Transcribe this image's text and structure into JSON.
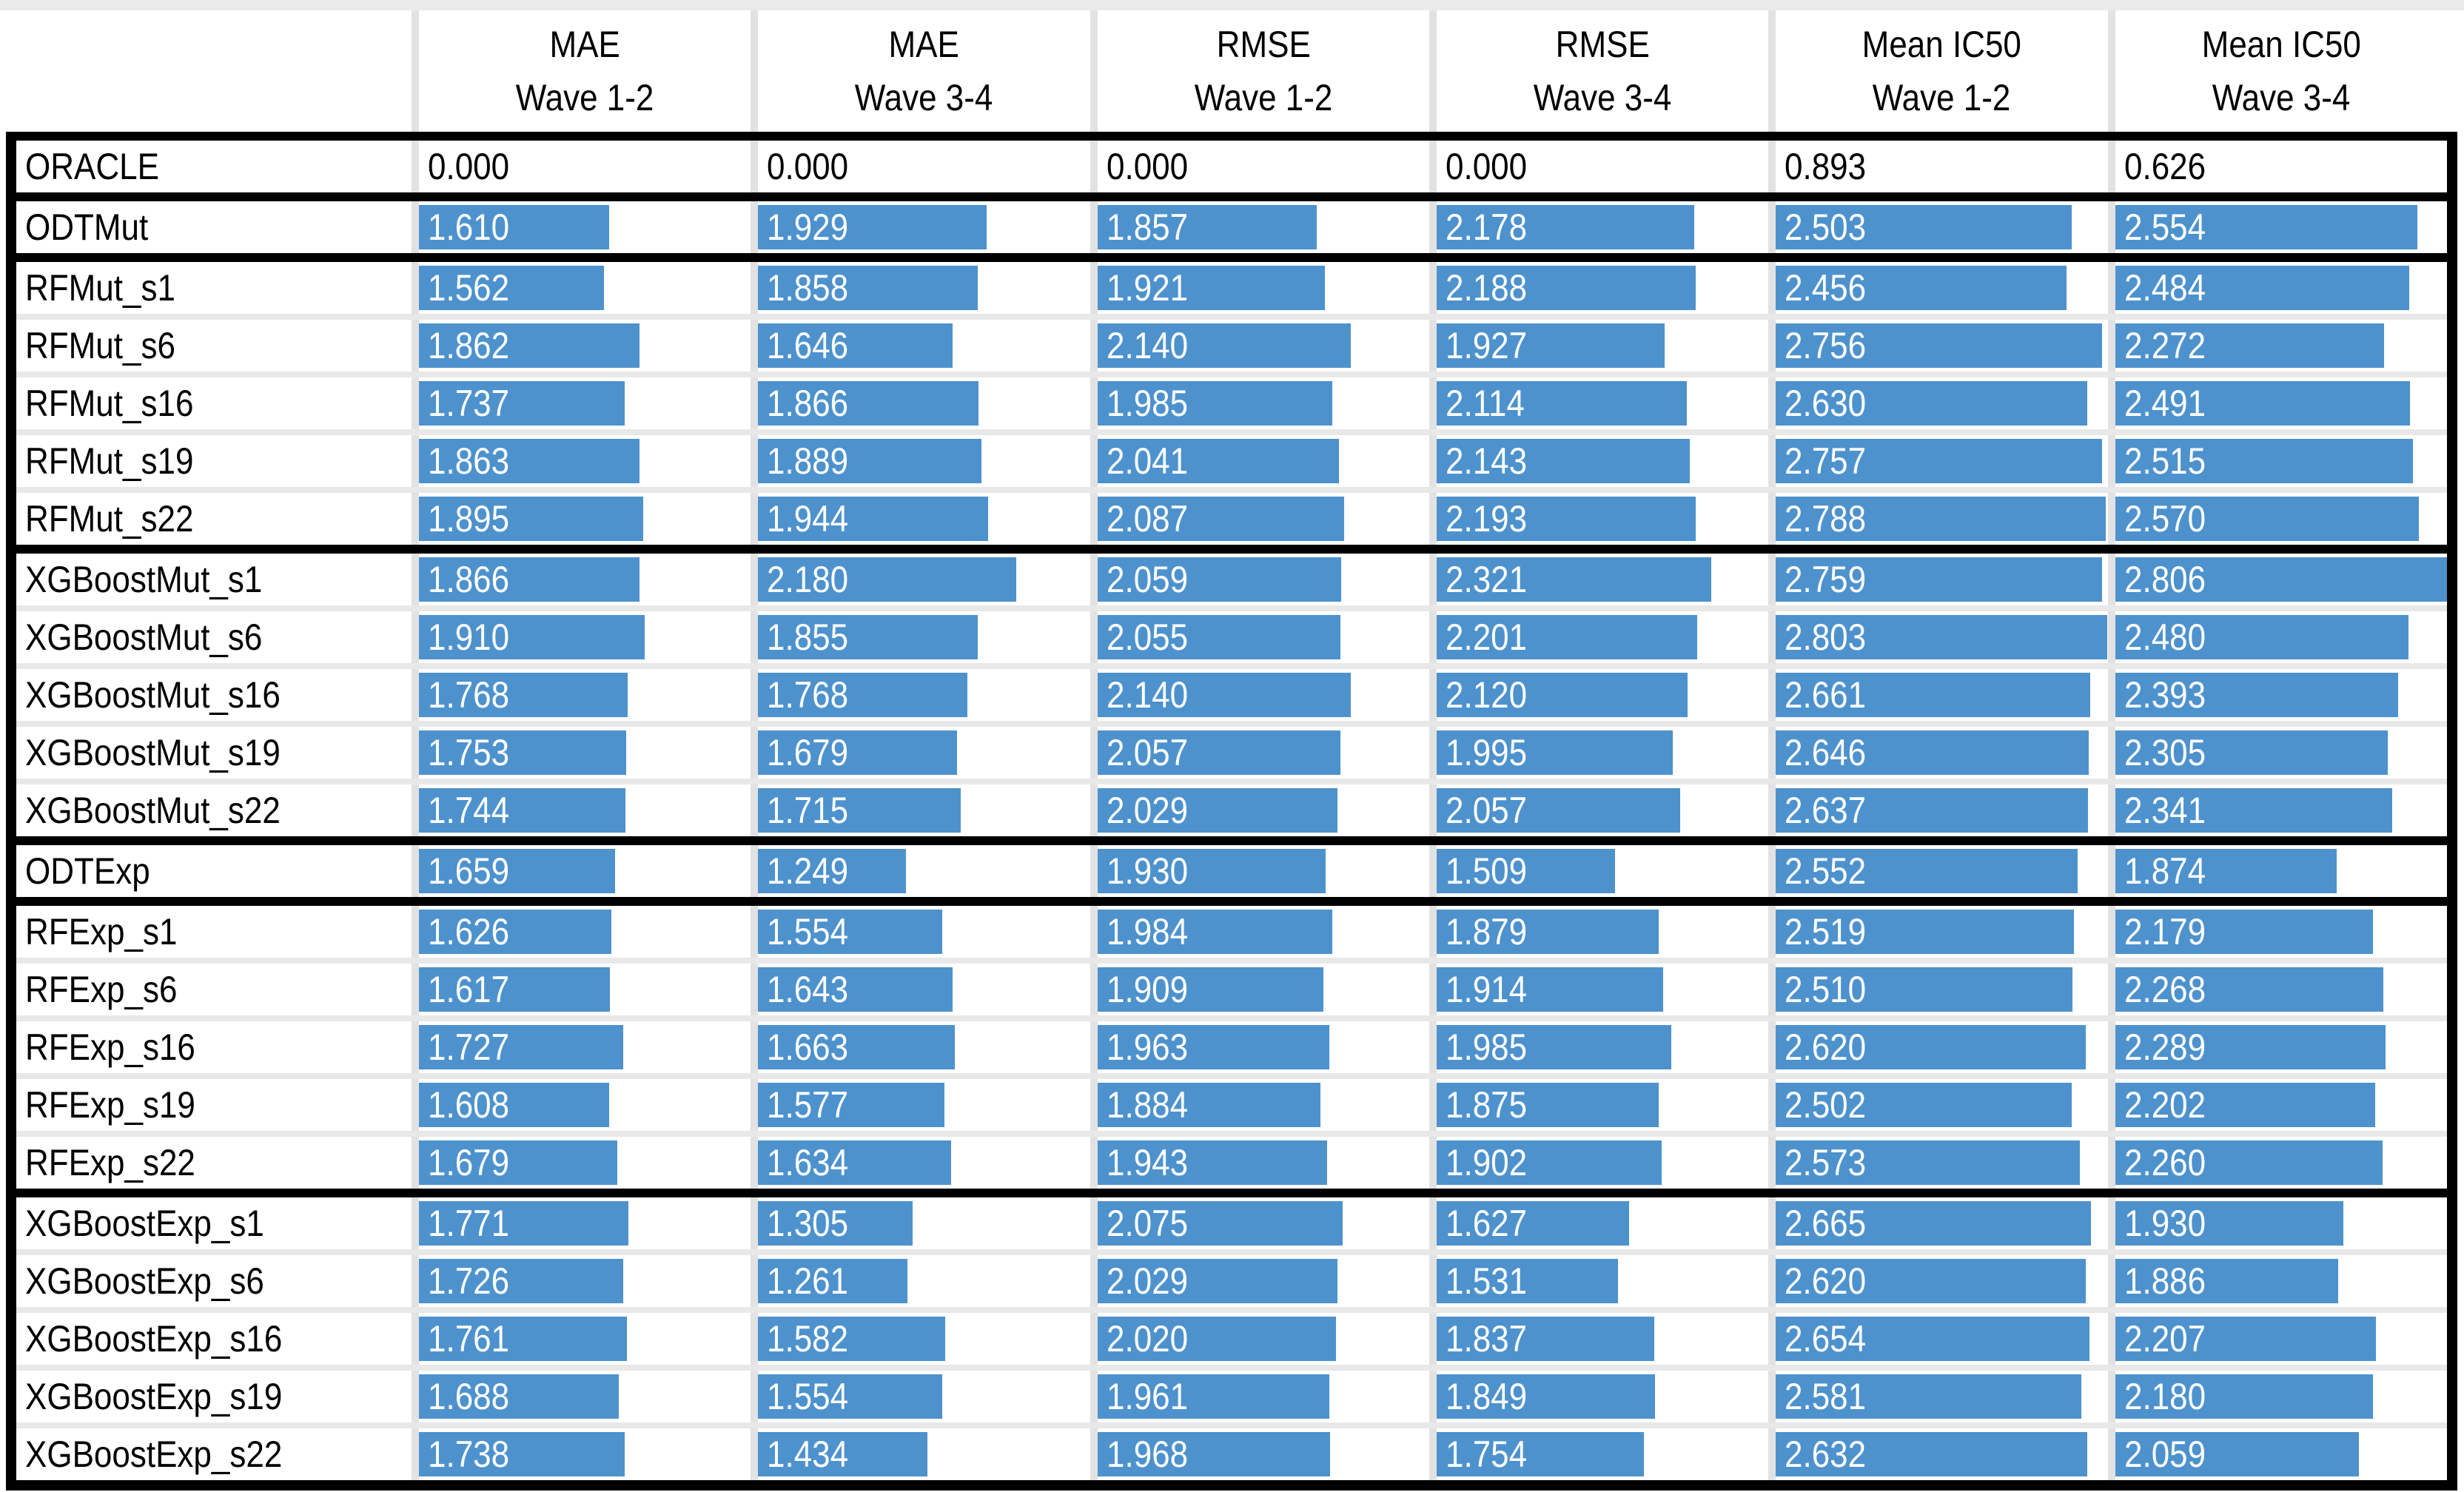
{
  "chart_data": {
    "type": "table",
    "title": "Model error and IC50 comparison table with data bars",
    "bar_color": "#4D92CD",
    "bar_scale_max": 2.806,
    "row_header_label": "",
    "columns": [
      [
        "MAE",
        "Wave 1-2"
      ],
      [
        "MAE",
        "Wave 3-4"
      ],
      [
        "RMSE",
        "Wave 1-2"
      ],
      [
        "RMSE",
        "Wave 3-4"
      ],
      [
        "Mean IC50",
        "Wave 1-2"
      ],
      [
        "Mean IC50",
        "Wave 3-4"
      ]
    ],
    "groups": [
      {
        "bars": false,
        "rows": [
          {
            "label": "ORACLE",
            "values": [
              "0.000",
              "0.000",
              "0.000",
              "0.000",
              "0.893",
              "0.626"
            ]
          }
        ]
      },
      {
        "bars": true,
        "rows": [
          {
            "label": "ODTMut",
            "values": [
              "1.610",
              "1.929",
              "1.857",
              "2.178",
              "2.503",
              "2.554"
            ]
          }
        ]
      },
      {
        "bars": true,
        "rows": [
          {
            "label": "RFMut_s1",
            "values": [
              "1.562",
              "1.858",
              "1.921",
              "2.188",
              "2.456",
              "2.484"
            ]
          },
          {
            "label": "RFMut_s6",
            "values": [
              "1.862",
              "1.646",
              "2.140",
              "1.927",
              "2.756",
              "2.272"
            ]
          },
          {
            "label": "RFMut_s16",
            "values": [
              "1.737",
              "1.866",
              "1.985",
              "2.114",
              "2.630",
              "2.491"
            ]
          },
          {
            "label": "RFMut_s19",
            "values": [
              "1.863",
              "1.889",
              "2.041",
              "2.143",
              "2.757",
              "2.515"
            ]
          },
          {
            "label": "RFMut_s22",
            "values": [
              "1.895",
              "1.944",
              "2.087",
              "2.193",
              "2.788",
              "2.570"
            ]
          }
        ]
      },
      {
        "bars": true,
        "rows": [
          {
            "label": "XGBoostMut_s1",
            "values": [
              "1.866",
              "2.180",
              "2.059",
              "2.321",
              "2.759",
              "2.806"
            ]
          },
          {
            "label": "XGBoostMut_s6",
            "values": [
              "1.910",
              "1.855",
              "2.055",
              "2.201",
              "2.803",
              "2.480"
            ]
          },
          {
            "label": "XGBoostMut_s16",
            "values": [
              "1.768",
              "1.768",
              "2.140",
              "2.120",
              "2.661",
              "2.393"
            ]
          },
          {
            "label": "XGBoostMut_s19",
            "values": [
              "1.753",
              "1.679",
              "2.057",
              "1.995",
              "2.646",
              "2.305"
            ]
          },
          {
            "label": "XGBoostMut_s22",
            "values": [
              "1.744",
              "1.715",
              "2.029",
              "2.057",
              "2.637",
              "2.341"
            ]
          }
        ]
      },
      {
        "bars": true,
        "rows": [
          {
            "label": "ODTExp",
            "values": [
              "1.659",
              "1.249",
              "1.930",
              "1.509",
              "2.552",
              "1.874"
            ]
          }
        ]
      },
      {
        "bars": true,
        "rows": [
          {
            "label": "RFExp_s1",
            "values": [
              "1.626",
              "1.554",
              "1.984",
              "1.879",
              "2.519",
              "2.179"
            ]
          },
          {
            "label": "RFExp_s6",
            "values": [
              "1.617",
              "1.643",
              "1.909",
              "1.914",
              "2.510",
              "2.268"
            ]
          },
          {
            "label": "RFExp_s16",
            "values": [
              "1.727",
              "1.663",
              "1.963",
              "1.985",
              "2.620",
              "2.289"
            ]
          },
          {
            "label": "RFExp_s19",
            "values": [
              "1.608",
              "1.577",
              "1.884",
              "1.875",
              "2.502",
              "2.202"
            ]
          },
          {
            "label": "RFExp_s22",
            "values": [
              "1.679",
              "1.634",
              "1.943",
              "1.902",
              "2.573",
              "2.260"
            ]
          }
        ]
      },
      {
        "bars": true,
        "rows": [
          {
            "label": "XGBoostExp_s1",
            "values": [
              "1.771",
              "1.305",
              "2.075",
              "1.627",
              "2.665",
              "1.930"
            ]
          },
          {
            "label": "XGBoostExp_s6",
            "values": [
              "1.726",
              "1.261",
              "2.029",
              "1.531",
              "2.620",
              "1.886"
            ]
          },
          {
            "label": "XGBoostExp_s16",
            "values": [
              "1.761",
              "1.582",
              "2.020",
              "1.837",
              "2.654",
              "2.207"
            ]
          },
          {
            "label": "XGBoostExp_s19",
            "values": [
              "1.688",
              "1.554",
              "1.961",
              "1.849",
              "2.581",
              "2.180"
            ]
          },
          {
            "label": "XGBoostExp_s22",
            "values": [
              "1.738",
              "1.434",
              "1.968",
              "1.754",
              "2.632",
              "2.059"
            ]
          }
        ]
      }
    ]
  }
}
